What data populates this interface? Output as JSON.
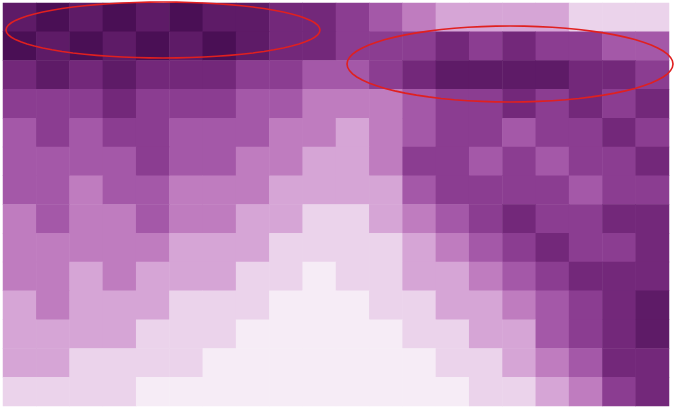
{
  "chart_data": {
    "type": "heatmap",
    "tick_labels": false,
    "color_range": [
      0,
      9
    ],
    "cells": [
      [
        8,
        9,
        8,
        9,
        8,
        9,
        8,
        8,
        7,
        7,
        6,
        5,
        4,
        3,
        3,
        3,
        3,
        2,
        2,
        2
      ],
      [
        9,
        8,
        9,
        8,
        9,
        8,
        9,
        8,
        7,
        7,
        6,
        6,
        6,
        7,
        6,
        7,
        6,
        6,
        5,
        5
      ],
      [
        7,
        8,
        7,
        8,
        7,
        7,
        7,
        6,
        6,
        5,
        5,
        6,
        7,
        8,
        8,
        8,
        8,
        7,
        7,
        6
      ],
      [
        6,
        6,
        6,
        7,
        6,
        6,
        6,
        5,
        5,
        4,
        4,
        4,
        5,
        6,
        6,
        7,
        6,
        7,
        6,
        7
      ],
      [
        5,
        6,
        5,
        6,
        6,
        5,
        5,
        5,
        4,
        4,
        3,
        4,
        5,
        6,
        6,
        5,
        6,
        6,
        7,
        6
      ],
      [
        5,
        5,
        5,
        5,
        6,
        5,
        5,
        4,
        4,
        3,
        3,
        4,
        6,
        6,
        5,
        6,
        5,
        6,
        6,
        7
      ],
      [
        5,
        5,
        4,
        5,
        5,
        4,
        4,
        4,
        3,
        3,
        3,
        3,
        5,
        6,
        6,
        6,
        6,
        5,
        6,
        6
      ],
      [
        4,
        5,
        4,
        4,
        5,
        4,
        4,
        3,
        3,
        2,
        2,
        3,
        4,
        5,
        6,
        7,
        6,
        6,
        7,
        7
      ],
      [
        4,
        4,
        4,
        4,
        4,
        3,
        3,
        3,
        2,
        2,
        2,
        2,
        3,
        4,
        5,
        6,
        7,
        6,
        6,
        7
      ],
      [
        4,
        4,
        3,
        4,
        3,
        3,
        3,
        2,
        2,
        1,
        2,
        2,
        3,
        3,
        4,
        5,
        6,
        7,
        7,
        7
      ],
      [
        3,
        4,
        3,
        3,
        3,
        2,
        2,
        2,
        1,
        1,
        1,
        2,
        2,
        3,
        3,
        4,
        5,
        6,
        7,
        8
      ],
      [
        3,
        3,
        3,
        3,
        2,
        2,
        2,
        1,
        1,
        1,
        1,
        1,
        2,
        2,
        3,
        3,
        5,
        6,
        7,
        8
      ],
      [
        3,
        3,
        2,
        2,
        2,
        2,
        1,
        1,
        1,
        1,
        1,
        1,
        1,
        2,
        2,
        3,
        4,
        5,
        7,
        7
      ],
      [
        2,
        2,
        2,
        2,
        1,
        1,
        1,
        1,
        1,
        1,
        1,
        1,
        1,
        1,
        2,
        2,
        3,
        4,
        6,
        7
      ]
    ]
  }
}
